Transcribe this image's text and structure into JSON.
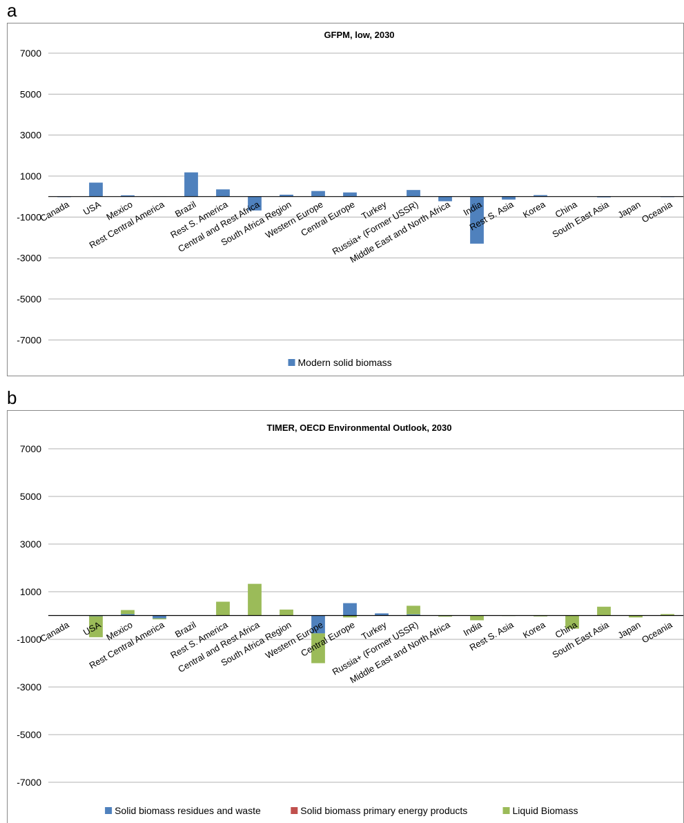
{
  "panels": [
    {
      "letter": "a",
      "chart_data": {
        "type": "bar",
        "title": "GFPM, low, 2030",
        "xlabel": "",
        "ylabel": "",
        "ylim": [
          -8000,
          8000
        ],
        "yticks": [
          7000,
          5000,
          3000,
          1000,
          -1000,
          -3000,
          -5000,
          -7000
        ],
        "grid": true,
        "legend_position": "bottom",
        "stacked": true,
        "categories": [
          "Canada",
          "USA",
          "Mexico",
          "Rest Central America",
          "Brazil",
          "Rest S. America",
          "Central and Rest Africa",
          "South Africa Region",
          "Western Europe",
          "Central Europe",
          "Turkey",
          "Russia+ (Former USSR)",
          "Middle East and North Africa",
          "India",
          "Rest S. Asia",
          "Korea",
          "China",
          "South East Asia",
          "Japan",
          "Oceania"
        ],
        "series": [
          {
            "name": "Modern solid biomass",
            "color": "#4F81BD",
            "values": [
              -30,
              680,
              60,
              10,
              1180,
              350,
              -680,
              90,
              270,
              200,
              0,
              320,
              -230,
              -2300,
              -150,
              70,
              0,
              -40,
              -10,
              -30
            ]
          }
        ]
      }
    },
    {
      "letter": "b",
      "chart_data": {
        "type": "bar",
        "title": "TIMER, OECD Environmental Outlook, 2030",
        "xlabel": "",
        "ylabel": "",
        "ylim": [
          -8000,
          8000
        ],
        "yticks": [
          7000,
          5000,
          3000,
          1000,
          -1000,
          -3000,
          -5000,
          -7000
        ],
        "grid": true,
        "legend_position": "bottom",
        "stacked": true,
        "categories": [
          "Canada",
          "USA",
          "Mexico",
          "Rest Central America",
          "Brazil",
          "Rest S. America",
          "Central and Rest Africa",
          "South Africa Region",
          "Western Europe",
          "Central Europe",
          "Turkey",
          "Russia+ (Former USSR)",
          "Middle East and North Africa",
          "India",
          "Rest S. Asia",
          "Korea",
          "China",
          "South East Asia",
          "Japan",
          "Oceania"
        ],
        "series": [
          {
            "name": "Solid biomass residues and waste",
            "color": "#4F81BD",
            "values": [
              0,
              -30,
              60,
              -120,
              0,
              0,
              0,
              0,
              -750,
              520,
              90,
              50,
              -20,
              0,
              0,
              -20,
              0,
              0,
              0,
              0
            ]
          },
          {
            "name": "Solid biomass primary energy products",
            "color": "#C0504D",
            "values": [
              0,
              0,
              0,
              0,
              0,
              0,
              0,
              0,
              0,
              0,
              0,
              0,
              0,
              0,
              0,
              0,
              0,
              0,
              0,
              0
            ]
          },
          {
            "name": "Liquid Biomass",
            "color": "#9BBB59",
            "values": [
              0,
              -880,
              170,
              -40,
              10,
              580,
              1330,
              250,
              -1250,
              -80,
              0,
              360,
              -30,
              -200,
              -20,
              -20,
              -550,
              370,
              -80,
              60
            ]
          }
        ]
      }
    }
  ]
}
